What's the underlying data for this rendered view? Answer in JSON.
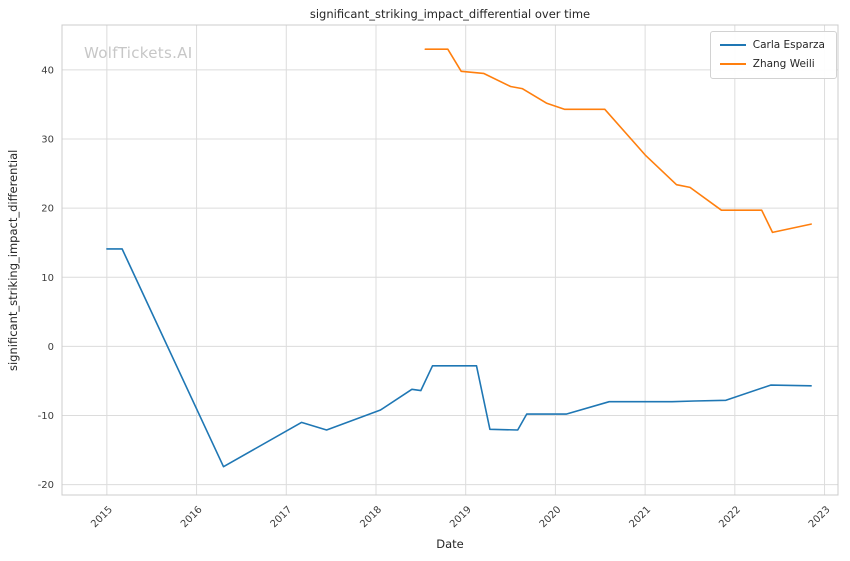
{
  "chart_data": {
    "type": "line",
    "title": "significant_striking_impact_differential over time",
    "xlabel": "Date",
    "ylabel": "significant_striking_impact_differential",
    "watermark": "WolfTickets.AI",
    "xlim": [
      2014.5,
      2023.15
    ],
    "ylim": [
      -21.5,
      46.5
    ],
    "xticks": [
      2015,
      2016,
      2017,
      2018,
      2019,
      2020,
      2021,
      2022,
      2023
    ],
    "yticks": [
      -20,
      -10,
      0,
      10,
      20,
      30,
      40
    ],
    "grid": true,
    "grid_color": "#dcdcdc",
    "spine_color": "#cccccc",
    "legend_position": "upper right",
    "series": [
      {
        "name": "Carla Esparza",
        "color": "#1f77b4",
        "points": [
          [
            2015.0,
            14.1
          ],
          [
            2015.17,
            14.1
          ],
          [
            2016.3,
            -17.4
          ],
          [
            2017.17,
            -11.0
          ],
          [
            2017.45,
            -12.1
          ],
          [
            2018.05,
            -9.2
          ],
          [
            2018.4,
            -6.2
          ],
          [
            2018.5,
            -6.4
          ],
          [
            2018.63,
            -2.8
          ],
          [
            2019.12,
            -2.8
          ],
          [
            2019.27,
            -12.0
          ],
          [
            2019.58,
            -12.1
          ],
          [
            2019.68,
            -9.8
          ],
          [
            2020.12,
            -9.8
          ],
          [
            2020.6,
            -8.0
          ],
          [
            2021.3,
            -8.0
          ],
          [
            2021.55,
            -7.9
          ],
          [
            2021.9,
            -7.8
          ],
          [
            2022.4,
            -5.6
          ],
          [
            2022.85,
            -5.7
          ]
        ]
      },
      {
        "name": "Zhang Weili",
        "color": "#ff7f0e",
        "points": [
          [
            2018.55,
            43.0
          ],
          [
            2018.8,
            43.0
          ],
          [
            2018.95,
            39.8
          ],
          [
            2019.2,
            39.5
          ],
          [
            2019.5,
            37.6
          ],
          [
            2019.63,
            37.3
          ],
          [
            2019.9,
            35.2
          ],
          [
            2020.1,
            34.3
          ],
          [
            2020.55,
            34.3
          ],
          [
            2021.0,
            27.7
          ],
          [
            2021.35,
            23.4
          ],
          [
            2021.5,
            23.0
          ],
          [
            2021.85,
            19.7
          ],
          [
            2022.3,
            19.7
          ],
          [
            2022.42,
            16.5
          ],
          [
            2022.85,
            17.7
          ]
        ]
      }
    ]
  }
}
